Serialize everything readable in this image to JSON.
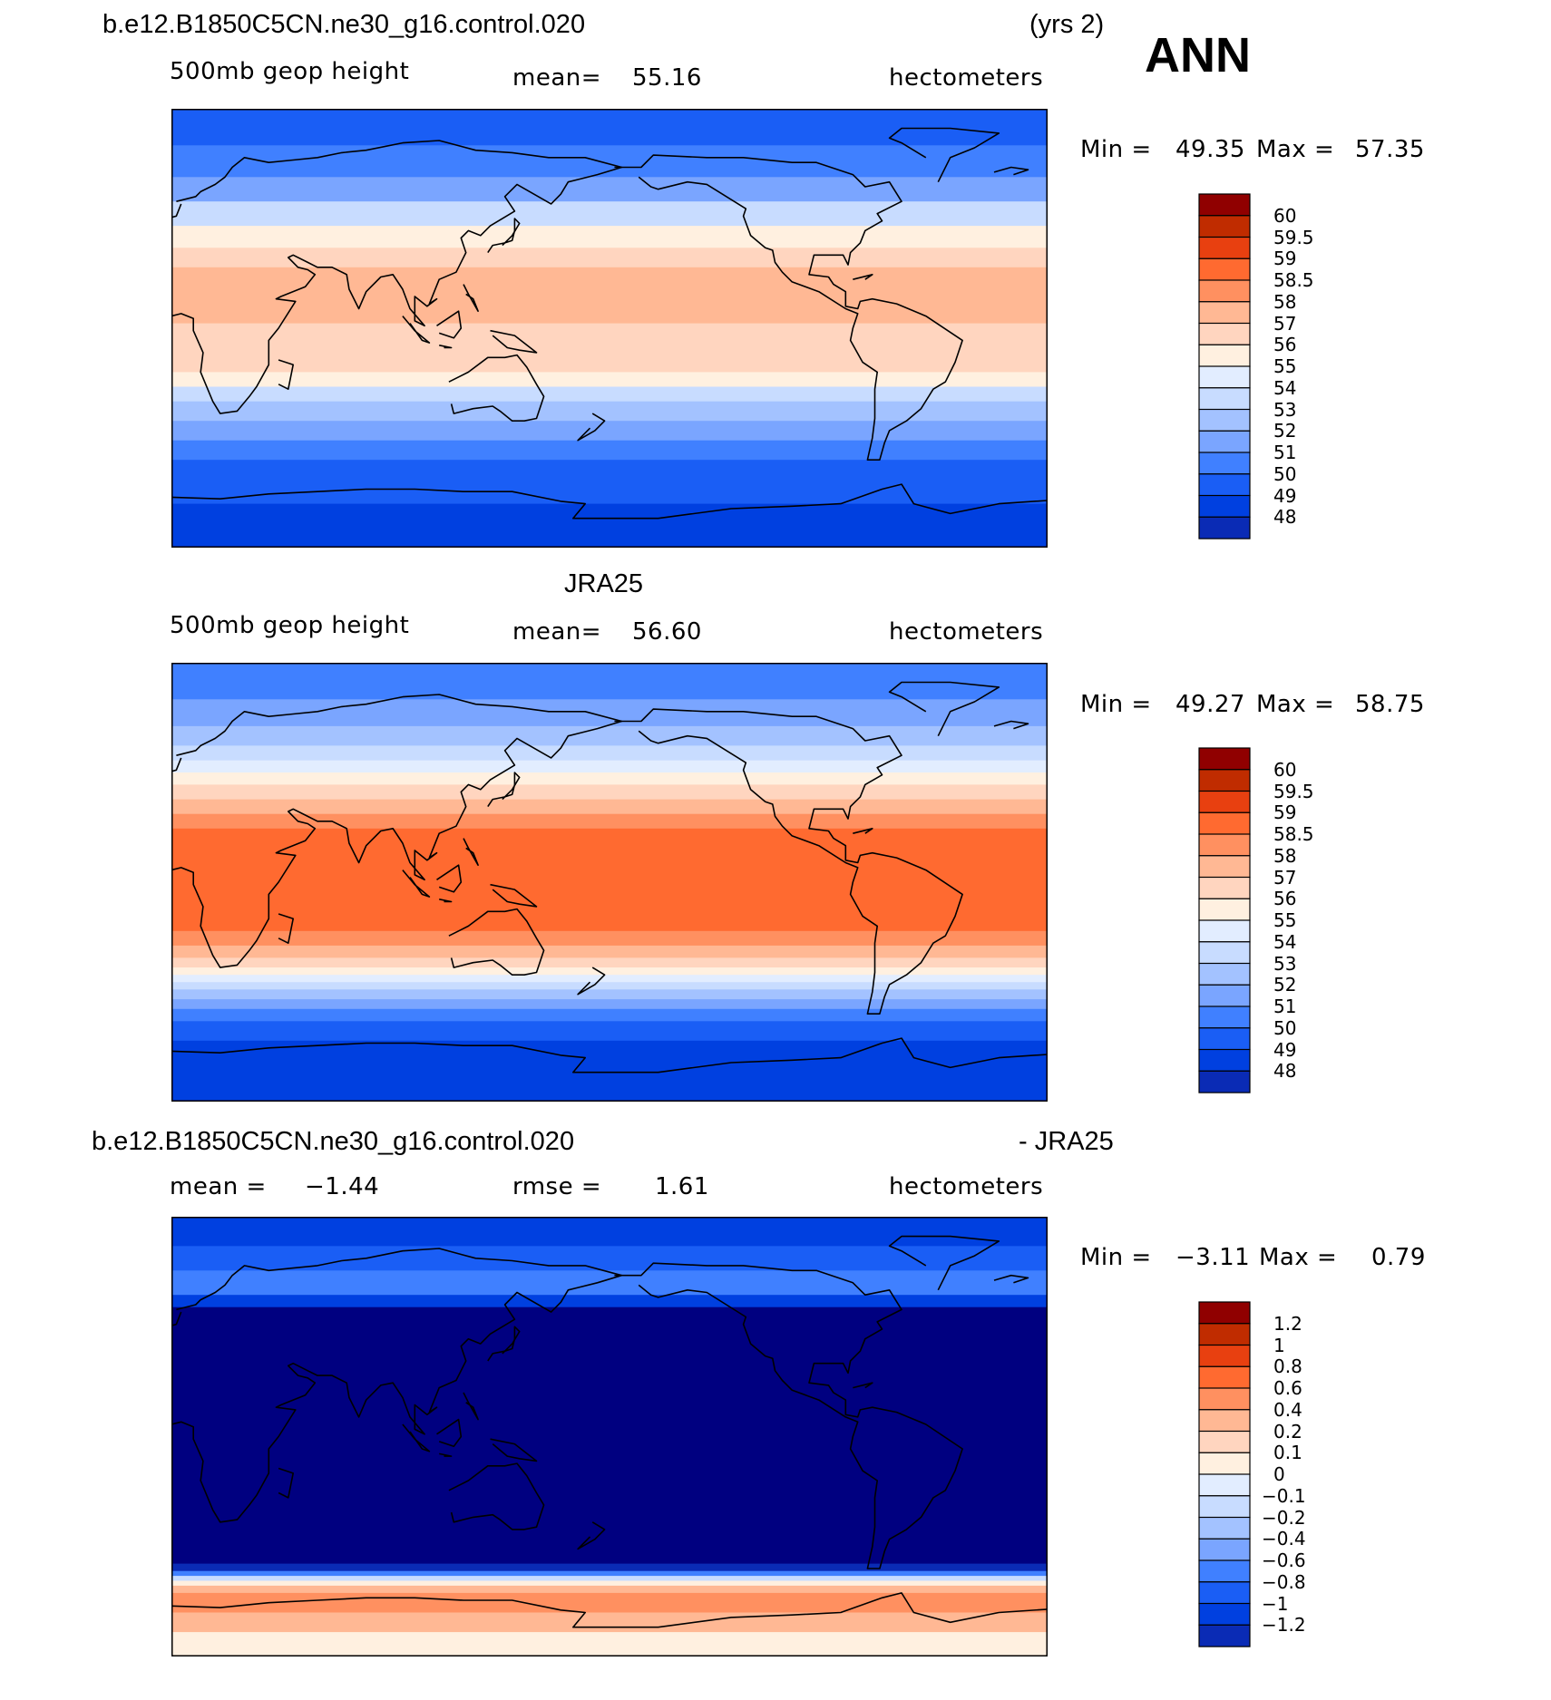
{
  "figure": {
    "case_title": "b.e12.B1850C5CN.ne30_g16.control.020",
    "years": "(yrs 2)",
    "season": "ANN"
  },
  "colors": {
    "abs": [
      "#000080",
      "#0a2bb5",
      "#0040e0",
      "#1a5ef5",
      "#4080ff",
      "#7aa5ff",
      "#a3c2ff",
      "#c8dcff",
      "#e2edff",
      "#fff0e0",
      "#ffd5bf",
      "#ffb894",
      "#ff9060",
      "#ff6a30",
      "#e84010",
      "#c02c00",
      "#900000"
    ],
    "diff": [
      "#000080",
      "#0a2bb5",
      "#0040e0",
      "#1a5ef5",
      "#4080ff",
      "#7aa5ff",
      "#a3c2ff",
      "#c8dcff",
      "#e2edff",
      "#fff0e0",
      "#ffd5bf",
      "#ffb894",
      "#ff9060",
      "#ff6a30",
      "#e84010",
      "#c02c00",
      "#900000"
    ],
    "land": "#000000"
  },
  "panels": [
    {
      "heading": "",
      "left": "500mb geop height",
      "center_label": "mean=",
      "center_value": "55.16",
      "units": "hectometers",
      "min_label": "Min =",
      "min_value": "49.35",
      "max_label": "Max =",
      "max_value": "57.35",
      "colorbar_labels": [
        "60",
        "59.5",
        "59",
        "58.5",
        "58",
        "57",
        "56",
        "55",
        "54",
        "53",
        "52",
        "51",
        "50",
        "49",
        "48"
      ],
      "bands": [
        {
          "lat": 90,
          "c": 3
        },
        {
          "lat": 75,
          "c": 4
        },
        {
          "lat": 62,
          "c": 5
        },
        {
          "lat": 52,
          "c": 7
        },
        {
          "lat": 42,
          "c": 9
        },
        {
          "lat": 33,
          "c": 10
        },
        {
          "lat": 25,
          "c": 11
        },
        {
          "lat": 2,
          "c": 10
        },
        {
          "lat": -18,
          "c": 9
        },
        {
          "lat": -24,
          "c": 7
        },
        {
          "lat": -30,
          "c": 6
        },
        {
          "lat": -38,
          "c": 5
        },
        {
          "lat": -46,
          "c": 4
        },
        {
          "lat": -54,
          "c": 3
        },
        {
          "lat": -62,
          "c": 3
        },
        {
          "lat": -72,
          "c": 2
        }
      ]
    },
    {
      "heading": "JRA25",
      "left": "500mb geop height",
      "center_label": "mean=",
      "center_value": "56.60",
      "units": "hectometers",
      "min_label": "Min =",
      "min_value": "49.27",
      "max_label": "Max =",
      "max_value": "58.75",
      "colorbar_labels": [
        "60",
        "59.5",
        "59",
        "58.5",
        "58",
        "57",
        "56",
        "55",
        "54",
        "53",
        "52",
        "51",
        "50",
        "49",
        "48"
      ],
      "bands": [
        {
          "lat": 90,
          "c": 4
        },
        {
          "lat": 75,
          "c": 5
        },
        {
          "lat": 64,
          "c": 6
        },
        {
          "lat": 56,
          "c": 7
        },
        {
          "lat": 50,
          "c": 8
        },
        {
          "lat": 45,
          "c": 9
        },
        {
          "lat": 40,
          "c": 10
        },
        {
          "lat": 34,
          "c": 11
        },
        {
          "lat": 28,
          "c": 12
        },
        {
          "lat": 22,
          "c": 13
        },
        {
          "lat": -20,
          "c": 12
        },
        {
          "lat": -26,
          "c": 11
        },
        {
          "lat": -31,
          "c": 10
        },
        {
          "lat": -35,
          "c": 9
        },
        {
          "lat": -38,
          "c": 8
        },
        {
          "lat": -41,
          "c": 7
        },
        {
          "lat": -44,
          "c": 6
        },
        {
          "lat": -48,
          "c": 5
        },
        {
          "lat": -52,
          "c": 4
        },
        {
          "lat": -57,
          "c": 3
        },
        {
          "lat": -65,
          "c": 2
        },
        {
          "lat": -77,
          "c": 2
        }
      ]
    },
    {
      "heading_left": "b.e12.B1850C5CN.ne30_g16.control.020",
      "heading_right": "- JRA25",
      "left_label": "mean =",
      "left_value": "−1.44",
      "center_label": "rmse =",
      "center_value": "1.61",
      "units": "hectometers",
      "min_label": "Min =",
      "min_value": "−3.11",
      "max_label": "Max =",
      "max_value": "0.79",
      "colorbar_labels": [
        "1.2",
        "1",
        "0.8",
        "0.6",
        "0.4",
        "0.2",
        "0.1",
        "0",
        "−0.1",
        "−0.2",
        "−0.4",
        "−0.6",
        "−0.8",
        "−1",
        "−1.2"
      ],
      "bands": [
        {
          "lat": 90,
          "c": 2
        },
        {
          "lat": 78,
          "c": 3
        },
        {
          "lat": 68,
          "c": 4
        },
        {
          "lat": 58,
          "c": 2
        },
        {
          "lat": 53,
          "c": 0
        },
        {
          "lat": -52,
          "c": 1
        },
        {
          "lat": -55,
          "c": 4
        },
        {
          "lat": -57,
          "c": 7
        },
        {
          "lat": -59,
          "c": 9
        },
        {
          "lat": -61,
          "c": 11
        },
        {
          "lat": -64,
          "c": 12
        },
        {
          "lat": -72,
          "c": 11
        },
        {
          "lat": -80,
          "c": 9
        }
      ]
    }
  ]
}
